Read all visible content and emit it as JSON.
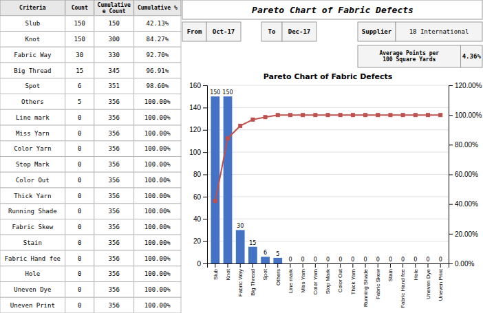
{
  "chart_data": [
    {
      "type": "table",
      "columns": [
        {
          "name": "Criteria",
          "values": [
            "Slub",
            "Knot",
            "Fabric Way",
            "Big Thread",
            "Spot",
            "Others",
            "Line mark",
            "Miss Yarn",
            "Color Yarn",
            "Stop Mark",
            "Color Out",
            "Thick Yarn",
            "Running Shade",
            "Fabric Skew",
            "Stain",
            "Fabric Hand fee",
            "Hole",
            "Uneven Dye",
            "Uneven Print"
          ]
        },
        {
          "name": "Count",
          "values": [
            150,
            150,
            30,
            15,
            6,
            5,
            0,
            0,
            0,
            0,
            0,
            0,
            0,
            0,
            0,
            0,
            0,
            0,
            0
          ]
        },
        {
          "name": "Cumulative\ne Count",
          "values": [
            150,
            300,
            330,
            345,
            351,
            356,
            356,
            356,
            356,
            356,
            356,
            356,
            356,
            356,
            356,
            356,
            356,
            356,
            356
          ]
        },
        {
          "name": "Cumulative %",
          "values": [
            42.13,
            84.27,
            92.7,
            96.91,
            98.6,
            100.0,
            100.0,
            100.0,
            100.0,
            100.0,
            100.0,
            100.0,
            100.0,
            100.0,
            100.0,
            100.0,
            100.0,
            100.0,
            100.0
          ],
          "value_labels": [
            "42.13%",
            "84.27%",
            "92.70%",
            "96.91%",
            "98.60%",
            "100.00%",
            "100.00%",
            "100.00%",
            "100.00%",
            "100.00%",
            "100.00%",
            "100.00%",
            "100.00%",
            "100.00%",
            "100.00%",
            "100.00%",
            "100.00%",
            "100.00%",
            "100.00%"
          ]
        }
      ]
    },
    {
      "type": "bar",
      "title": "Pareto Chart of Fabric Defects",
      "annotations": [
        "Pareto Chart of Fabric Defects",
        "From",
        "Oct-17",
        "To",
        "Dec-17",
        "Supplier",
        "18 International",
        "Average Points per\n100 Square Yards",
        "4.36%"
      ],
      "categories": [
        "Slub",
        "Knot",
        "Fabric Way",
        "Big Thread",
        "Spot",
        "Others",
        "Line mark",
        "Miss Yarn",
        "Color Yarn",
        "Stop Mark",
        "Color Out",
        "Thick Yarn",
        "Running Shade",
        "Fabric Skew",
        "Stain",
        "Fabric Hand fee",
        "Hole",
        "Uneven Dye",
        "Uneven Print"
      ],
      "series": [
        {
          "type": "bar",
          "color": "#4472C4",
          "data_labels": true,
          "values": [
            150,
            150,
            30,
            15,
            6,
            5,
            0,
            0,
            0,
            0,
            0,
            0,
            0,
            0,
            0,
            0,
            0,
            0,
            0
          ]
        },
        {
          "type": "line",
          "axis": "y2",
          "color": "#C0504D",
          "marker": "square",
          "values": [
            42.13,
            84.27,
            92.7,
            96.91,
            98.6,
            100.0,
            100.0,
            100.0,
            100.0,
            100.0,
            100.0,
            100.0,
            100.0,
            100.0,
            100.0,
            100.0,
            100.0,
            100.0,
            100.0
          ]
        }
      ],
      "ylim": [
        0,
        160
      ],
      "yticks": [
        0,
        20,
        40,
        60,
        80,
        100,
        120,
        140,
        160
      ],
      "y2lim": [
        0,
        120
      ],
      "y2ticks": [
        {
          "value": 0,
          "label": "0.00%"
        },
        {
          "value": 20,
          "label": "20.00%"
        },
        {
          "value": 40,
          "label": "40.00%"
        },
        {
          "value": 60,
          "label": "60.00%"
        },
        {
          "value": 80,
          "label": "80.00%"
        },
        {
          "value": 100,
          "label": "100.00%"
        },
        {
          "value": 120,
          "label": "120.00%"
        }
      ],
      "grid": true
    }
  ]
}
